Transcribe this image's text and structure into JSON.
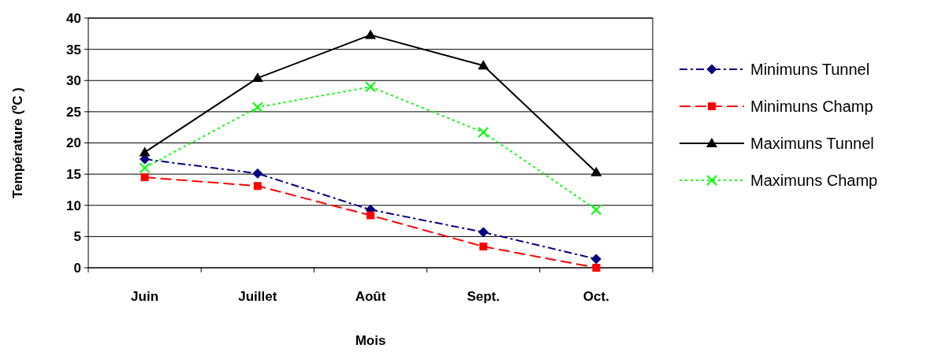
{
  "chart_data": {
    "type": "line",
    "xlabel": "Mois",
    "ylabel": "Température (ºC )",
    "categories": [
      "Juin",
      "Juillet",
      "Août",
      "Sept.",
      "Oct."
    ],
    "ylim": [
      0,
      40
    ],
    "yticks": [
      0,
      5,
      10,
      15,
      20,
      25,
      30,
      35,
      40
    ],
    "grid": "y",
    "legend": "right",
    "series": [
      {
        "name": "Minimuns Tunnel",
        "color": "#000080",
        "marker": "diamond",
        "line_style": "dashdot",
        "values": [
          17.4,
          15.1,
          9.3,
          5.7,
          1.4
        ]
      },
      {
        "name": "Minimuns Champ",
        "color": "#ff0000",
        "marker": "square",
        "line_style": "dashed",
        "values": [
          14.5,
          13.1,
          8.4,
          3.4,
          0
        ]
      },
      {
        "name": "Maximuns Tunnel",
        "color": "#000000",
        "marker": "triangle",
        "line_style": "solid",
        "values": [
          18.5,
          30.4,
          37.3,
          32.4,
          15.3
        ]
      },
      {
        "name": "Maximuns Champ",
        "color": "#00ff00",
        "marker": "cross",
        "line_style": "dotted",
        "values": [
          16.0,
          25.7,
          29.0,
          21.7,
          9.3
        ]
      }
    ]
  }
}
